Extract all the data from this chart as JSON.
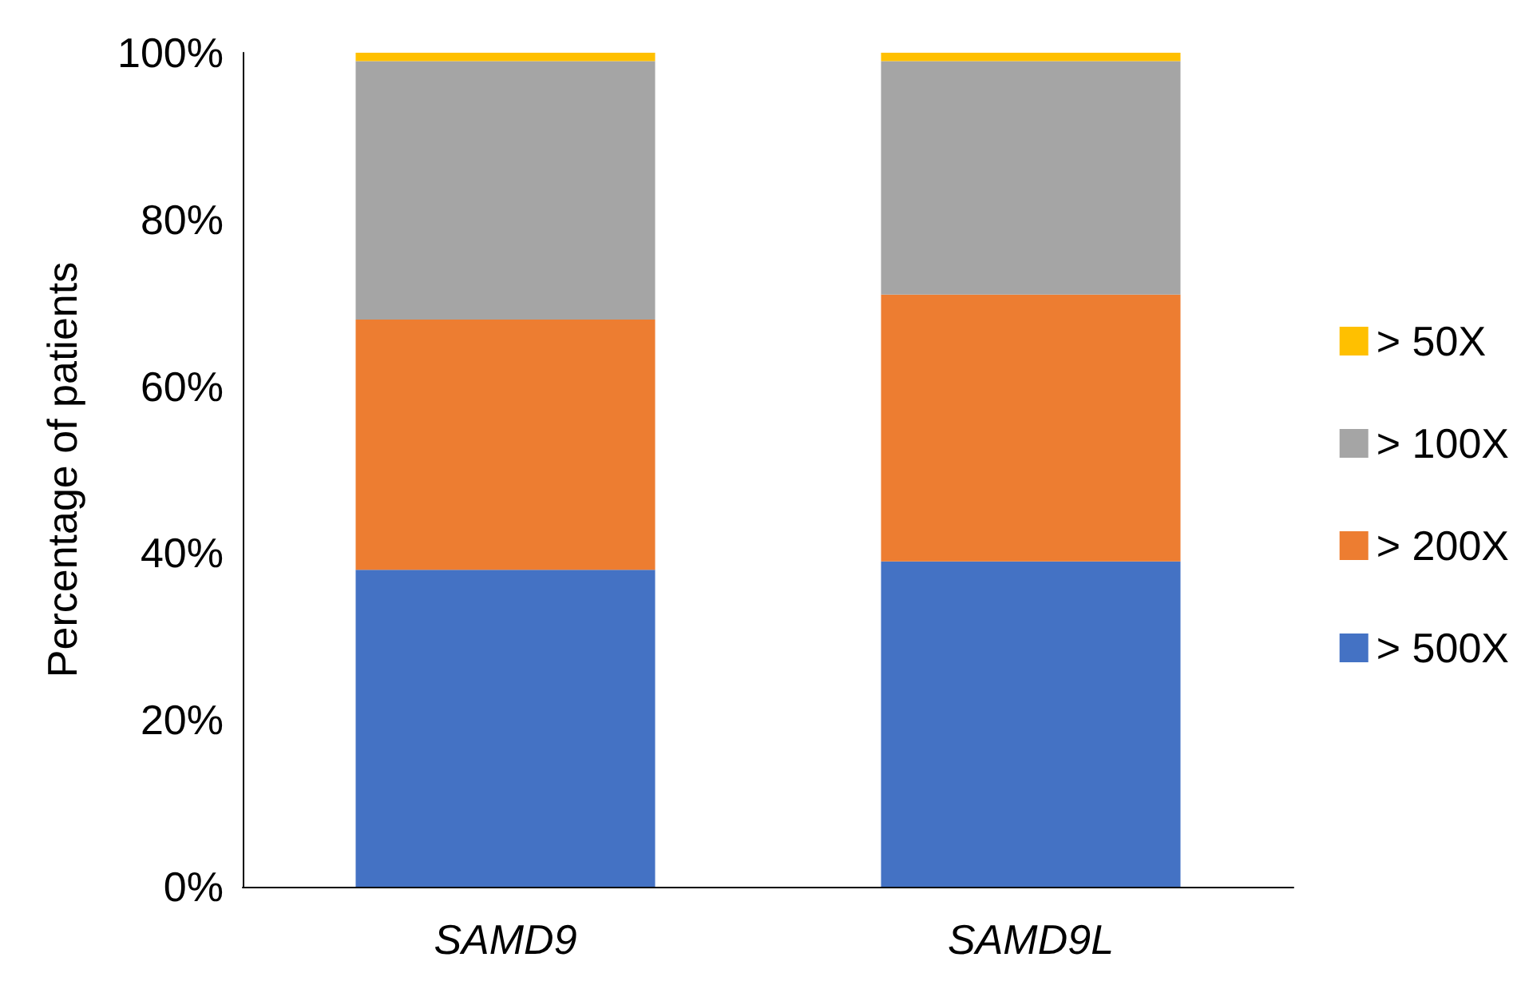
{
  "chart_data": {
    "type": "bar",
    "stacked": true,
    "ylabel": "Percentage of patients",
    "categories": [
      "SAMD9",
      "SAMD9L"
    ],
    "series": [
      {
        "name": "> 500X",
        "color": "#4472c4",
        "values": [
          38,
          39
        ]
      },
      {
        "name": "> 200X",
        "color": "#ed7d31",
        "values": [
          30,
          32
        ]
      },
      {
        "name": "> 100X",
        "color": "#a5a5a5",
        "values": [
          31,
          28
        ]
      },
      {
        "name": "> 50X",
        "color": "#ffc000",
        "values": [
          1,
          1
        ]
      }
    ],
    "ylim": [
      0,
      100
    ],
    "yticks": [
      {
        "value": 0,
        "label": "0%"
      },
      {
        "value": 20,
        "label": "20%"
      },
      {
        "value": 40,
        "label": "40%"
      },
      {
        "value": 60,
        "label": "60%"
      },
      {
        "value": 80,
        "label": "80%"
      },
      {
        "value": 100,
        "label": "100%"
      }
    ],
    "grid": false,
    "legend": "right"
  }
}
